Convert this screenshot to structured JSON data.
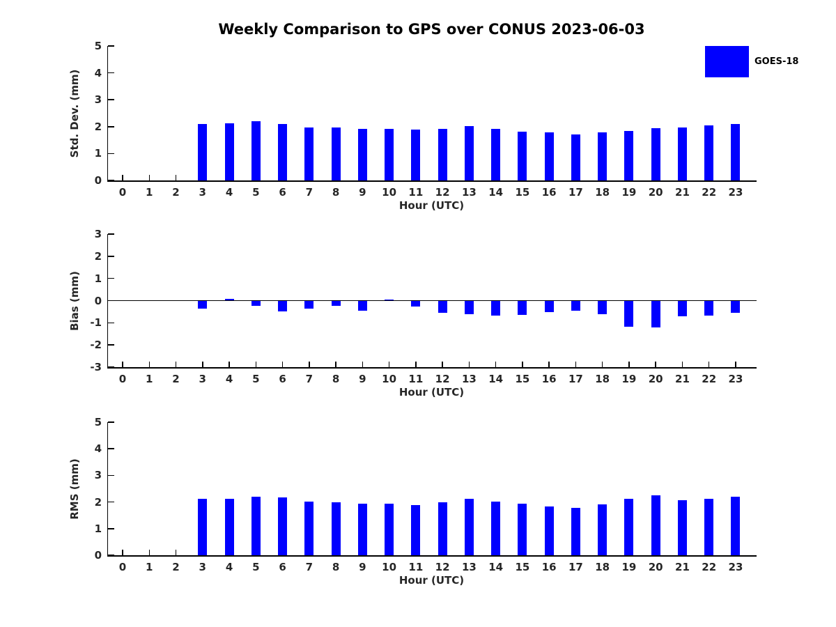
{
  "title": "Weekly Comparison to GPS over CONUS 2023-06-03",
  "legend": {
    "label": "GOES-18",
    "color": "#0000FF"
  },
  "hours": [
    0,
    1,
    2,
    3,
    4,
    5,
    6,
    7,
    8,
    9,
    10,
    11,
    12,
    13,
    14,
    15,
    16,
    17,
    18,
    19,
    20,
    21,
    22,
    23
  ],
  "chart_data": [
    {
      "type": "bar",
      "panel": "std-dev",
      "ylabel": "Std. Dev. (mm)",
      "xlabel": "Hour (UTC)",
      "ylim": [
        0,
        5
      ],
      "yticks": [
        0,
        1,
        2,
        3,
        4,
        5
      ],
      "series_name": "GOES-18",
      "values": [
        null,
        null,
        null,
        2.1,
        2.12,
        2.2,
        2.1,
        1.98,
        1.96,
        1.91,
        1.91,
        1.88,
        1.91,
        2.01,
        1.91,
        1.81,
        1.78,
        1.71,
        1.8,
        1.84,
        1.94,
        1.97,
        2.04,
        2.11
      ]
    },
    {
      "type": "bar",
      "panel": "bias",
      "ylabel": "Bias (mm)",
      "xlabel": "Hour (UTC)",
      "ylim": [
        -3,
        3
      ],
      "yticks": [
        -3,
        -2,
        -1,
        0,
        1,
        2,
        3
      ],
      "series_name": "GOES-18",
      "values": [
        null,
        null,
        null,
        -0.35,
        0.08,
        -0.25,
        -0.5,
        -0.35,
        -0.22,
        -0.45,
        0.04,
        -0.27,
        -0.55,
        -0.62,
        -0.66,
        -0.63,
        -0.52,
        -0.46,
        -0.62,
        -1.18,
        -1.2,
        -0.7,
        -0.66,
        -0.56
      ]
    },
    {
      "type": "bar",
      "panel": "rms",
      "ylabel": "RMS (mm)",
      "xlabel": "Hour (UTC)",
      "ylim": [
        0,
        5
      ],
      "yticks": [
        0,
        1,
        2,
        3,
        4,
        5
      ],
      "series_name": "GOES-18",
      "values": [
        null,
        null,
        null,
        2.11,
        2.11,
        2.21,
        2.17,
        2.01,
        1.98,
        1.95,
        1.93,
        1.89,
        2.0,
        2.12,
        2.01,
        1.93,
        1.84,
        1.77,
        1.92,
        2.12,
        2.26,
        2.08,
        2.13,
        2.19
      ]
    }
  ]
}
